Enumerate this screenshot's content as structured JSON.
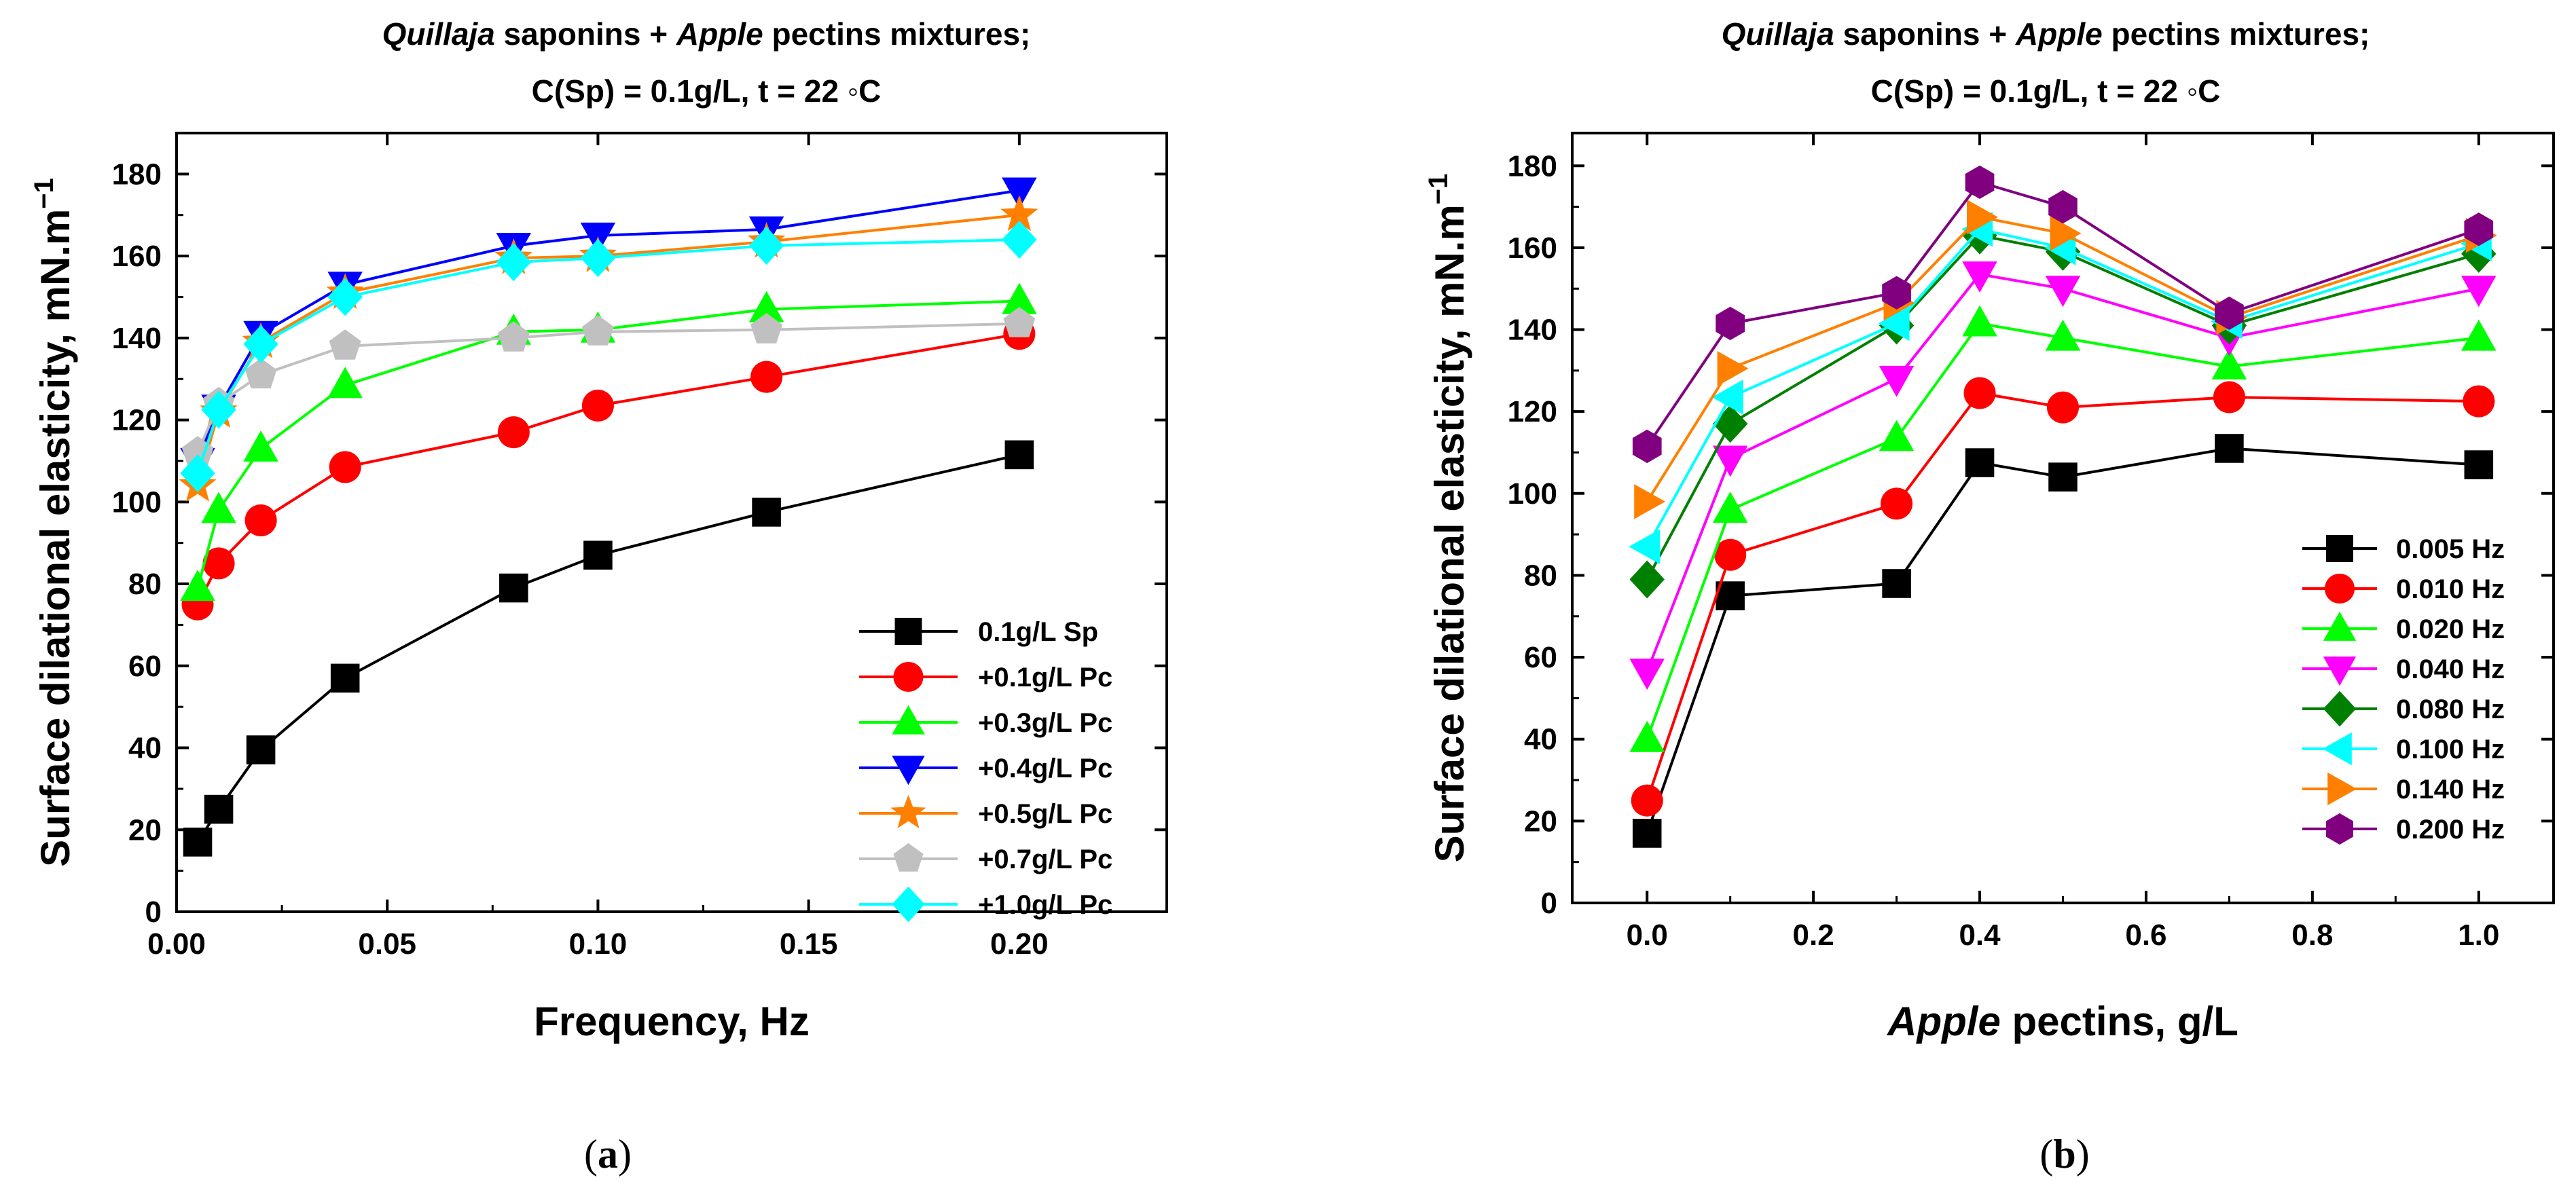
{
  "chart_data": [
    {
      "type": "line",
      "panel_label": "(a)",
      "title_parts": [
        "Quillaja",
        " saponins + ",
        "Apple",
        " pectins mixtures;"
      ],
      "title_line2": "C(Sp) = 0.1g/L, t = 22 ◦C",
      "xlabel": "Frequency, Hz",
      "xlabel_parts": [
        "Frequency, Hz"
      ],
      "ylabel": "Surface dilational elasticity, mN.m",
      "ylabel_sup": "−1",
      "xlim": [
        0,
        0.235
      ],
      "ylim": [
        0,
        190
      ],
      "xticks": [
        0.0,
        0.05,
        0.1,
        0.15,
        0.2
      ],
      "xtick_labels": [
        "0.00",
        "0.05",
        "0.10",
        "0.15",
        "0.20"
      ],
      "yticks": [
        0,
        20,
        40,
        60,
        80,
        100,
        120,
        140,
        160,
        180
      ],
      "ytick_labels": [
        "0",
        "20",
        "40",
        "60",
        "80",
        "100",
        "120",
        "140",
        "160",
        "180"
      ],
      "legend_position": "lower-right",
      "x": [
        0.005,
        0.01,
        0.02,
        0.04,
        0.08,
        0.1,
        0.14,
        0.2
      ],
      "series": [
        {
          "name": "0.1g/L Sp",
          "color": "#000000",
          "marker": "square",
          "values": [
            17,
            25,
            39.5,
            57,
            79,
            87,
            97.5,
            111.5
          ]
        },
        {
          "name": "+0.1g/L Pc",
          "color": "#ff0000",
          "marker": "circle",
          "values": [
            75,
            85,
            95.5,
            108.5,
            117,
            123.5,
            130.5,
            141
          ]
        },
        {
          "name": "+0.3g/L Pc",
          "color": "#00ff00",
          "marker": "triangle-up",
          "values": [
            79,
            98,
            113,
            128.5,
            141.5,
            142,
            147,
            149
          ]
        },
        {
          "name": "+0.4g/L Pc",
          "color": "#0000ff",
          "marker": "triangle-down",
          "values": [
            110,
            123,
            141,
            153,
            162.5,
            165,
            166.5,
            176
          ]
        },
        {
          "name": "+0.5g/L Pc",
          "color": "#ff8000",
          "marker": "star",
          "values": [
            104,
            122,
            139,
            151,
            159.5,
            160,
            163.5,
            170
          ]
        },
        {
          "name": "+0.7g/L Pc",
          "color": "#c0c0c0",
          "marker": "pentagon",
          "values": [
            112,
            124,
            131,
            138,
            140,
            141.5,
            142,
            143.5
          ]
        },
        {
          "name": "+1.0g/L Pc",
          "color": "#00ffff",
          "marker": "diamond",
          "values": [
            107,
            122.5,
            138.5,
            150,
            158.5,
            159.5,
            162.5,
            164
          ]
        }
      ]
    },
    {
      "type": "line",
      "panel_label": "(b)",
      "title_parts": [
        "Quillaja",
        " saponins + ",
        "Apple",
        " pectins mixtures;"
      ],
      "title_line2": "C(Sp) = 0.1g/L, t = 22 ◦C",
      "xlabel": "Apple pectins, g/L",
      "xlabel_parts": [
        "Apple",
        " pectins, g/L"
      ],
      "ylabel": "Surface dilational elasticity, mN.m",
      "ylabel_sup": "−1",
      "xlim": [
        -0.09,
        1.09
      ],
      "ylim": [
        0,
        188
      ],
      "xticks": [
        0.0,
        0.2,
        0.4,
        0.6,
        0.8,
        1.0
      ],
      "xtick_labels": [
        "0.0",
        "0.2",
        "0.4",
        "0.6",
        "0.8",
        "1.0"
      ],
      "yticks": [
        0,
        20,
        40,
        60,
        80,
        100,
        120,
        140,
        160,
        180
      ],
      "ytick_labels": [
        "0",
        "20",
        "40",
        "60",
        "80",
        "100",
        "120",
        "140",
        "160",
        "180"
      ],
      "legend_position": "lower-right",
      "x": [
        0.0,
        0.1,
        0.3,
        0.4,
        0.5,
        0.7,
        1.0
      ],
      "series": [
        {
          "name": "0.005 Hz",
          "color": "#000000",
          "marker": "square",
          "values": [
            17,
            75,
            78,
            107.5,
            104,
            111,
            107
          ]
        },
        {
          "name": "0.010 Hz",
          "color": "#ff0000",
          "marker": "circle",
          "values": [
            25,
            85,
            97.5,
            124.5,
            121,
            123.5,
            122.5
          ]
        },
        {
          "name": "0.020 Hz",
          "color": "#00ff00",
          "marker": "triangle-up",
          "values": [
            40,
            96,
            113.5,
            141.5,
            138,
            131,
            138
          ]
        },
        {
          "name": "0.040 Hz",
          "color": "#ff00ff",
          "marker": "triangle-down",
          "values": [
            56.5,
            108.5,
            128,
            153.5,
            150,
            138,
            150
          ]
        },
        {
          "name": "0.080 Hz",
          "color": "#008000",
          "marker": "diamond",
          "values": [
            79,
            117,
            141,
            163,
            159,
            141,
            158.5
          ]
        },
        {
          "name": "0.100 Hz",
          "color": "#00ffff",
          "marker": "triangle-left",
          "values": [
            87,
            123.5,
            141.5,
            164.5,
            160,
            142,
            161
          ]
        },
        {
          "name": "0.140 Hz",
          "color": "#ff8000",
          "marker": "triangle-right",
          "values": [
            98,
            130.5,
            146.5,
            167.5,
            163.5,
            143,
            163
          ]
        },
        {
          "name": "0.200 Hz",
          "color": "#800080",
          "marker": "hexagon",
          "values": [
            111.5,
            141.5,
            149,
            176,
            170,
            144,
            164.5
          ]
        }
      ]
    }
  ]
}
